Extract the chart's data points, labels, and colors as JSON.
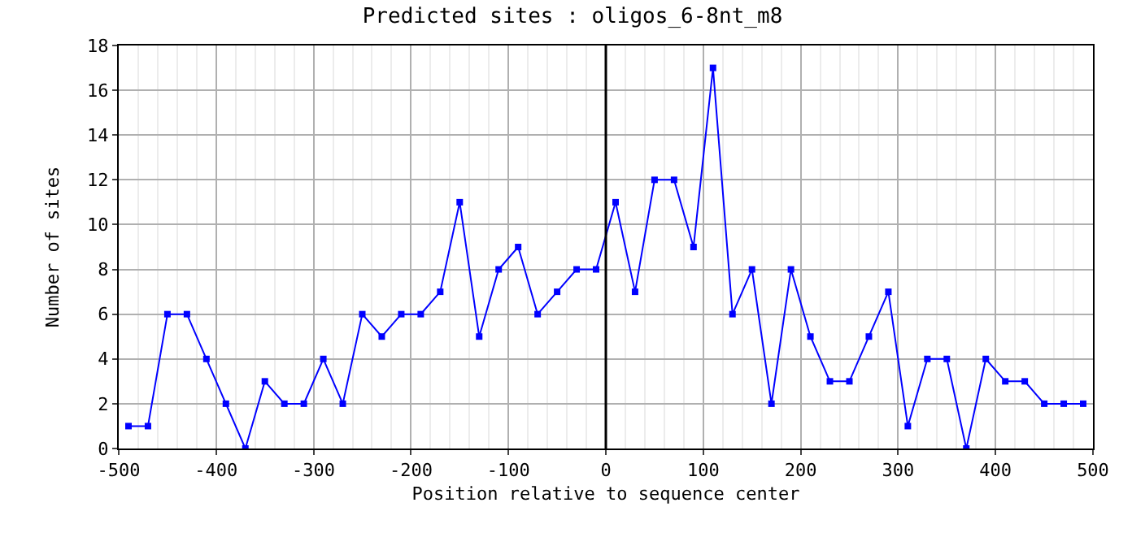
{
  "chart_data": {
    "type": "line",
    "title": "Predicted sites : oligos_6-8nt_m8",
    "xlabel": "Position relative to sequence center",
    "ylabel": "Number of sites",
    "x": [
      -490,
      -470,
      -450,
      -430,
      -410,
      -390,
      -370,
      -350,
      -330,
      -310,
      -290,
      -270,
      -250,
      -230,
      -210,
      -190,
      -170,
      -150,
      -130,
      -110,
      -90,
      -70,
      -50,
      -30,
      -10,
      10,
      30,
      50,
      70,
      90,
      110,
      130,
      150,
      170,
      190,
      210,
      230,
      250,
      270,
      290,
      310,
      330,
      350,
      370,
      390,
      410,
      430,
      450,
      470,
      490
    ],
    "series": [
      {
        "color": "#0000ff",
        "values": [
          1,
          1,
          6,
          6,
          4,
          2,
          0,
          3,
          2,
          2,
          4,
          2,
          6,
          5,
          6,
          6,
          7,
          11,
          5,
          8,
          9,
          6,
          7,
          8,
          8,
          11,
          7,
          12,
          12,
          9,
          17,
          6,
          8,
          2,
          8,
          5,
          3,
          3,
          5,
          7,
          1,
          4,
          4,
          0,
          4,
          3,
          3,
          2,
          2,
          2
        ]
      }
    ],
    "xlim": [
      -500,
      500
    ],
    "xticks": [
      -500,
      -400,
      -300,
      -200,
      -100,
      0,
      100,
      200,
      300,
      400,
      500
    ],
    "ylim": [
      0,
      18
    ],
    "yticks": [
      0,
      2,
      4,
      6,
      8,
      10,
      12,
      14,
      16,
      18
    ],
    "ref_lines": [
      {
        "axis": "x",
        "value": 0,
        "color": "#000000"
      }
    ],
    "grid": true,
    "marker": "square",
    "line_style": "solid"
  }
}
